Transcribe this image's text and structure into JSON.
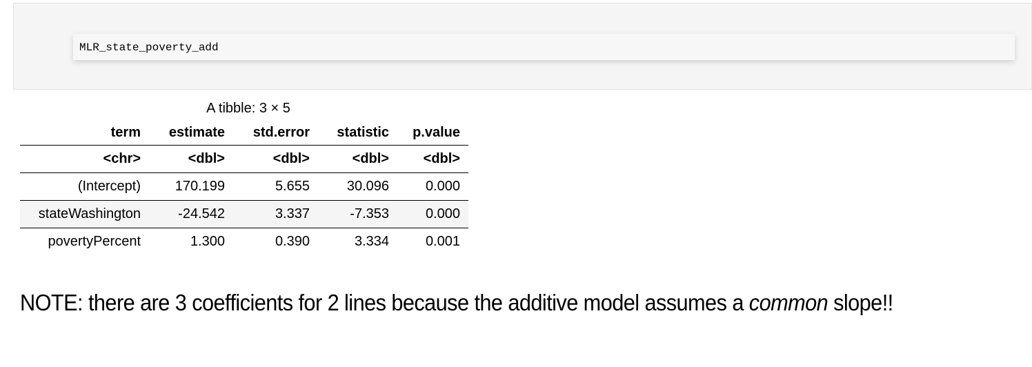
{
  "cell": {
    "code": "MLR_state_poverty_add"
  },
  "output": {
    "caption": "A tibble: 3 × 5",
    "columns": [
      "term",
      "estimate",
      "std.error",
      "statistic",
      "p.value"
    ],
    "types": [
      "<chr>",
      "<dbl>",
      "<dbl>",
      "<dbl>",
      "<dbl>"
    ],
    "rows": [
      [
        "(Intercept)",
        "170.199",
        "5.655",
        "30.096",
        "0.000"
      ],
      [
        "stateWashington",
        "-24.542",
        "3.337",
        "-7.353",
        "0.000"
      ],
      [
        "povertyPercent",
        "1.300",
        "0.390",
        "3.334",
        "0.001"
      ]
    ]
  },
  "note": {
    "before": "NOTE: there are 3 coefficients for 2 lines because the additive model assumes a ",
    "emphasis": "common",
    "after": " slope!!"
  }
}
